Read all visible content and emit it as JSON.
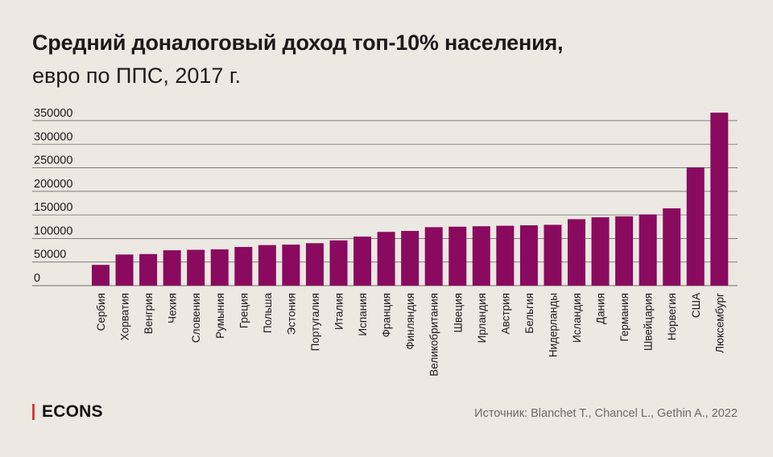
{
  "title": "Средний доналоговый доход топ-10% населения,",
  "subtitle": "евро по ППС, 2017 г.",
  "logo": "ECONS",
  "source": "Источник: Blanchet T., Chancel L., Gethin A., 2022",
  "colors": {
    "bar": "#8a0a5f",
    "grid": "#6f6f6f",
    "logo_accent": "#d43f3a",
    "background": "#ece8e2"
  },
  "chart_data": {
    "type": "bar",
    "categories": [
      "Сербия",
      "Хорватия",
      "Венгрия",
      "Чехия",
      "Словения",
      "Румыния",
      "Греция",
      "Польша",
      "Эстония",
      "Португалия",
      "Италия",
      "Испания",
      "Франция",
      "Финляндия",
      "Великобритания",
      "Швеция",
      "Ирландия",
      "Австрия",
      "Бельгия",
      "Нидерланды",
      "Исландия",
      "Дания",
      "Германия",
      "Швейцария",
      "Норвегия",
      "США",
      "Люксембург"
    ],
    "values": [
      44000,
      66000,
      67000,
      75000,
      76000,
      77000,
      82000,
      86000,
      87000,
      90000,
      96000,
      104000,
      114000,
      116000,
      124000,
      125000,
      126000,
      127000,
      128000,
      129000,
      141000,
      145000,
      147000,
      151000,
      164000,
      251000,
      367000
    ],
    "yticks": [
      0,
      50000,
      100000,
      150000,
      200000,
      250000,
      300000,
      350000
    ],
    "ylim": [
      0,
      367000
    ],
    "grid": true
  }
}
